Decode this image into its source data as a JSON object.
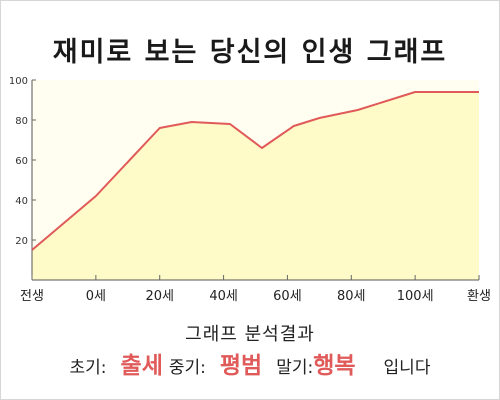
{
  "title": "재미로 보는 당신의 인생 그래프",
  "chart_data": {
    "type": "area",
    "x_categories": [
      "전생",
      "0세",
      "20세",
      "40세",
      "60세",
      "80세",
      "100세",
      "환생"
    ],
    "points": [
      {
        "x": 0,
        "y": 15
      },
      {
        "x": 1,
        "y": 42
      },
      {
        "x": 2,
        "y": 76
      },
      {
        "x": 2.5,
        "y": 79
      },
      {
        "x": 3.1,
        "y": 78
      },
      {
        "x": 3.6,
        "y": 66
      },
      {
        "x": 4.1,
        "y": 77
      },
      {
        "x": 4.5,
        "y": 81
      },
      {
        "x": 5.1,
        "y": 85
      },
      {
        "x": 6,
        "y": 94
      },
      {
        "x": 7,
        "y": 94
      }
    ],
    "y_ticks": [
      20,
      40,
      60,
      80,
      100
    ],
    "ylim": [
      0,
      100
    ],
    "grid": false,
    "line_color": "#e05a5a",
    "fill_color": "#fefbc8"
  },
  "result": {
    "heading": "그래프 분석결과",
    "early_label": "초기:",
    "early_value": "출세",
    "mid_label": "중기:",
    "mid_value": "평범",
    "late_label": "말기:",
    "late_value": "행복",
    "ending": "입니다"
  },
  "colors": {
    "accent": "#e05a5a",
    "area_fill": "#fefbc8",
    "plot_background": "#fffef0"
  }
}
